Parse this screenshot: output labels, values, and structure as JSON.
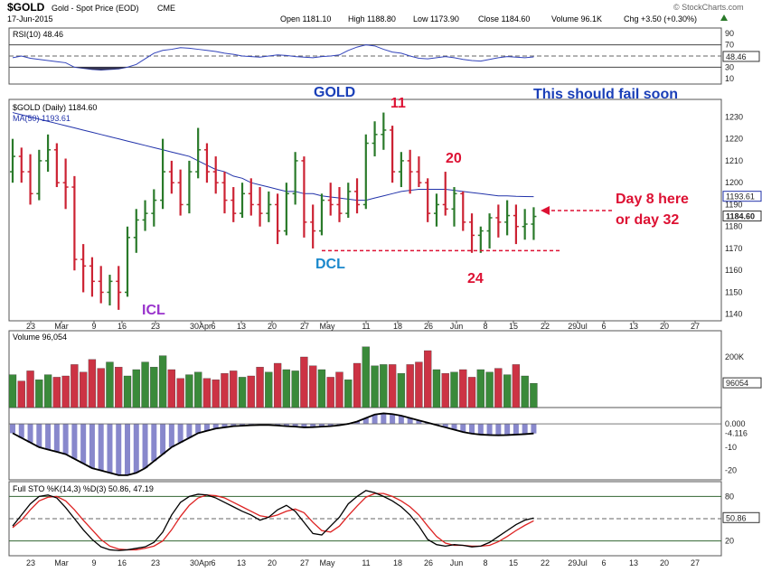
{
  "header": {
    "symbol": "$GOLD",
    "description": "Gold - Spot Price (EOD)",
    "exchange": "CME",
    "date": "17-Jun-2015",
    "open": "Open 1181.10",
    "high": "High 1188.80",
    "low": "Low 1173.90",
    "close": "Close 1184.60",
    "volume": "Volume 96.1K",
    "change": "Chg +3.50 (+0.30%)",
    "change_arrow": "up-triangle-icon",
    "watermark": "© StockCharts.com"
  },
  "colors": {
    "up": "#2a7a2a",
    "down": "#cc2233",
    "rsi": "#3344bb",
    "ma": "#2233aa",
    "annotation_red": "#dd1133",
    "annotation_blue": "#1a3fb8",
    "dcl": "#1a88cc",
    "icl": "#9933cc",
    "sto_k": "#000000",
    "sto_d": "#dd2222",
    "macd_fill": "#8888cc"
  },
  "annotations": {
    "gold": "GOLD",
    "fail": "This should fail soon",
    "cycle_high_1": "11",
    "cycle_high_2": "20",
    "cycle_low": "24",
    "dcl": "DCL",
    "icl": "ICL",
    "day_line1": "Day 8 here",
    "day_line2": "or day 32"
  },
  "chart_data": [
    {
      "type": "line",
      "panel": "rsi",
      "title": "RSI(10) 48.46",
      "y_ticks": [
        "90",
        "70",
        "50",
        "30",
        "10"
      ],
      "ylim": [
        0,
        100
      ],
      "current_label": "48.46",
      "series": [
        {
          "name": "RSI(10)",
          "values": [
            47,
            50,
            46,
            44,
            42,
            40,
            38,
            30,
            28,
            26,
            25,
            26,
            27,
            30,
            35,
            45,
            55,
            60,
            62,
            65,
            64,
            62,
            60,
            58,
            55,
            53,
            50,
            49,
            48,
            50,
            52,
            51,
            49,
            48,
            47,
            49,
            50,
            52,
            60,
            66,
            70,
            68,
            62,
            57,
            55,
            50,
            46,
            45,
            47,
            49,
            47,
            44,
            42,
            41,
            44,
            47,
            49,
            48,
            47,
            48.46
          ]
        }
      ]
    },
    {
      "type": "bar",
      "panel": "price",
      "title": "$GOLD (Daily) 1184.60",
      "ma_label": "MA(50) 1193.61",
      "ylim": [
        1137,
        1238
      ],
      "y_ticks": [
        "1230",
        "1220",
        "1210",
        "1200",
        "1190",
        "1180",
        "1170",
        "1160",
        "1150",
        "1140"
      ],
      "x_ticks": [
        "23",
        "Mar",
        "9",
        "16",
        "23",
        "30Apr",
        "6",
        "13",
        "20",
        "27",
        "May",
        "11",
        "18",
        "26",
        "Jun",
        "8",
        "15",
        "22",
        "29Jul",
        "6",
        "13",
        "20",
        "27"
      ],
      "ma_value_label": "1193.61",
      "last_value_label": "1184.60",
      "ohlc": [
        [
          1205,
          1220,
          1200,
          1212
        ],
        [
          1212,
          1216,
          1200,
          1205
        ],
        [
          1205,
          1213,
          1190,
          1195
        ],
        [
          1195,
          1215,
          1192,
          1210
        ],
        [
          1210,
          1222,
          1205,
          1215
        ],
        [
          1215,
          1218,
          1198,
          1200
        ],
        [
          1200,
          1211,
          1188,
          1198
        ],
        [
          1198,
          1203,
          1160,
          1165
        ],
        [
          1165,
          1172,
          1150,
          1162
        ],
        [
          1162,
          1166,
          1148,
          1155
        ],
        [
          1155,
          1162,
          1145,
          1150
        ],
        [
          1150,
          1158,
          1144,
          1155
        ],
        [
          1155,
          1162,
          1142,
          1150
        ],
        [
          1150,
          1180,
          1148,
          1175
        ],
        [
          1175,
          1188,
          1168,
          1183
        ],
        [
          1183,
          1192,
          1178,
          1186
        ],
        [
          1186,
          1197,
          1180,
          1192
        ],
        [
          1192,
          1220,
          1188,
          1205
        ],
        [
          1205,
          1210,
          1195,
          1200
        ],
        [
          1200,
          1206,
          1185,
          1190
        ],
        [
          1190,
          1210,
          1186,
          1205
        ],
        [
          1205,
          1225,
          1202,
          1215
        ],
        [
          1215,
          1218,
          1200,
          1205
        ],
        [
          1205,
          1212,
          1195,
          1200
        ],
        [
          1200,
          1205,
          1186,
          1192
        ],
        [
          1192,
          1198,
          1182,
          1186
        ],
        [
          1186,
          1200,
          1184,
          1195
        ],
        [
          1195,
          1202,
          1185,
          1190
        ],
        [
          1190,
          1198,
          1180,
          1186
        ],
        [
          1186,
          1196,
          1182,
          1190
        ],
        [
          1190,
          1195,
          1172,
          1178
        ],
        [
          1178,
          1200,
          1176,
          1195
        ],
        [
          1195,
          1214,
          1190,
          1210
        ],
        [
          1210,
          1212,
          1175,
          1182
        ],
        [
          1182,
          1190,
          1170,
          1178
        ],
        [
          1178,
          1195,
          1176,
          1192
        ],
        [
          1192,
          1200,
          1185,
          1190
        ],
        [
          1190,
          1198,
          1182,
          1186
        ],
        [
          1186,
          1200,
          1184,
          1196
        ],
        [
          1196,
          1202,
          1186,
          1190
        ],
        [
          1190,
          1222,
          1188,
          1218
        ],
        [
          1218,
          1228,
          1212,
          1222
        ],
        [
          1222,
          1232,
          1215,
          1224
        ],
        [
          1224,
          1226,
          1200,
          1205
        ],
        [
          1205,
          1214,
          1198,
          1210
        ],
        [
          1210,
          1215,
          1195,
          1205
        ],
        [
          1205,
          1212,
          1198,
          1200
        ],
        [
          1200,
          1202,
          1182,
          1186
        ],
        [
          1186,
          1195,
          1180,
          1190
        ],
        [
          1190,
          1205,
          1185,
          1188
        ],
        [
          1188,
          1198,
          1180,
          1195
        ],
        [
          1195,
          1196,
          1178,
          1182
        ],
        [
          1182,
          1186,
          1168,
          1176
        ],
        [
          1176,
          1180,
          1168,
          1178
        ],
        [
          1178,
          1186,
          1170,
          1184
        ],
        [
          1184,
          1190,
          1175,
          1182
        ],
        [
          1182,
          1192,
          1176,
          1185
        ],
        [
          1185,
          1190,
          1172,
          1180
        ],
        [
          1180,
          1188,
          1174,
          1181.1
        ],
        [
          1181.1,
          1188.8,
          1173.9,
          1184.6
        ]
      ],
      "ma50": [
        1232,
        1231,
        1230,
        1229,
        1228,
        1227,
        1226,
        1225,
        1224,
        1223,
        1222,
        1221,
        1220,
        1219,
        1218,
        1217,
        1216,
        1215,
        1214,
        1213,
        1212,
        1210,
        1208,
        1206,
        1205,
        1203,
        1202,
        1200,
        1199,
        1198,
        1197,
        1196,
        1196,
        1195,
        1195,
        1194,
        1193.5,
        1193,
        1192.5,
        1192,
        1192,
        1193,
        1194,
        1195,
        1196,
        1196.5,
        1197,
        1197,
        1197,
        1197,
        1196.5,
        1196,
        1195.5,
        1195,
        1194.5,
        1194,
        1194,
        1193.8,
        1193.7,
        1193.61
      ],
      "cycle_low_line": 1169
    },
    {
      "type": "bar",
      "panel": "volume",
      "title": "Volume 96,054",
      "y_tick": "200K",
      "current_label": "96054",
      "values": [
        130,
        105,
        145,
        110,
        130,
        120,
        125,
        170,
        140,
        190,
        155,
        180,
        160,
        125,
        150,
        180,
        160,
        205,
        150,
        115,
        130,
        140,
        115,
        110,
        135,
        145,
        120,
        125,
        160,
        140,
        175,
        150,
        145,
        200,
        165,
        150,
        120,
        140,
        110,
        175,
        240,
        165,
        170,
        170,
        135,
        170,
        180,
        225,
        150,
        135,
        140,
        150,
        120,
        150,
        140,
        155,
        130,
        170,
        125,
        96
      ]
    },
    {
      "type": "area",
      "panel": "macd",
      "y_ticks": [
        "0.000",
        "-4.116",
        "-10",
        "-20"
      ],
      "ylim": [
        -24,
        7
      ],
      "values": [
        -4,
        -6,
        -8,
        -10,
        -11,
        -12,
        -13,
        -15,
        -17,
        -19,
        -20,
        -21,
        -22,
        -22,
        -21,
        -19,
        -16,
        -13,
        -10,
        -8,
        -6,
        -4,
        -3,
        -2,
        -1.5,
        -1,
        -0.8,
        -0.6,
        -0.5,
        -0.5,
        -0.7,
        -1,
        -1.2,
        -1.5,
        -1.4,
        -1.2,
        -1,
        -0.6,
        0,
        1,
        2.5,
        4,
        4.5,
        4.2,
        3.5,
        2.5,
        1.5,
        0.5,
        -0.5,
        -1.5,
        -2.5,
        -3.5,
        -4.2,
        -4.6,
        -4.8,
        -4.9,
        -4.8,
        -4.6,
        -4.4,
        -4.116
      ]
    },
    {
      "type": "line",
      "panel": "stochastic",
      "title": "Full STO %K(14,3) %D(3) 50.86, 47.19",
      "y_ticks": [
        "80",
        "20"
      ],
      "ylim": [
        0,
        100
      ],
      "current_label": "50.86",
      "series": [
        {
          "name": "%K(14,3)",
          "values": [
            40,
            55,
            70,
            80,
            82,
            78,
            65,
            50,
            35,
            22,
            12,
            8,
            7,
            8,
            10,
            12,
            18,
            32,
            55,
            72,
            80,
            83,
            82,
            78,
            72,
            66,
            60,
            55,
            48,
            52,
            62,
            68,
            60,
            45,
            30,
            28,
            40,
            52,
            70,
            80,
            88,
            85,
            80,
            74,
            66,
            55,
            40,
            22,
            15,
            13,
            15,
            14,
            12,
            13,
            18,
            26,
            34,
            42,
            48,
            50.86
          ]
        },
        {
          "name": "%D(3)",
          "values": [
            38,
            48,
            62,
            74,
            79,
            80,
            74,
            62,
            48,
            35,
            22,
            13,
            9,
            8,
            8,
            10,
            13,
            20,
            35,
            53,
            68,
            78,
            82,
            81,
            78,
            72,
            66,
            60,
            54,
            52,
            55,
            60,
            63,
            58,
            45,
            34,
            32,
            40,
            54,
            67,
            79,
            84,
            84,
            80,
            74,
            66,
            55,
            40,
            26,
            17,
            14,
            14,
            13,
            13,
            14,
            19,
            26,
            34,
            41,
            47.19
          ]
        }
      ]
    }
  ]
}
